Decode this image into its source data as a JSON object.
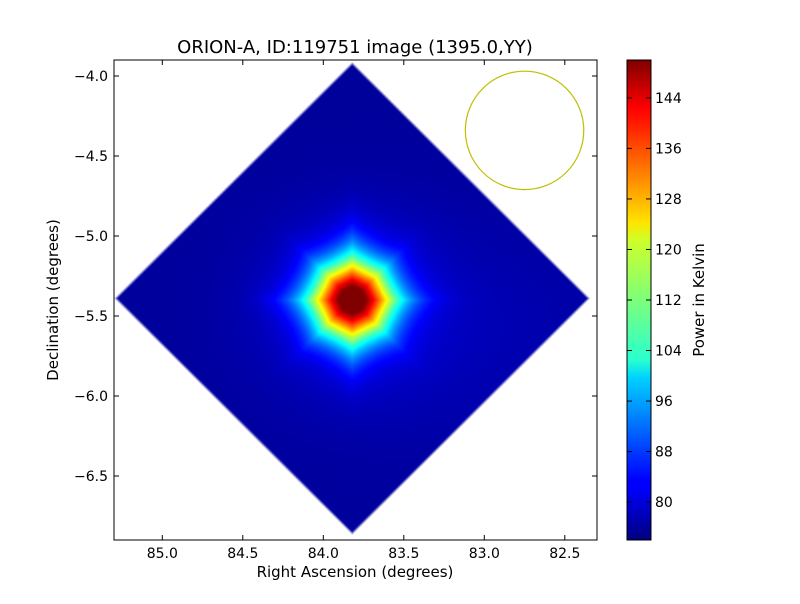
{
  "chart_data": {
    "type": "heatmap",
    "title": "ORION-A, ID:119751 image (1395.0,YY)",
    "xlabel": "Right Ascension (degrees)",
    "ylabel": "Declination (degrees)",
    "colorbar_label": "Power in Kelvin",
    "colormap": "jet",
    "xlim": [
      85.3,
      82.3
    ],
    "ylim": [
      -6.9,
      -3.9
    ],
    "x_ticks": [
      85.0,
      84.5,
      84.0,
      83.5,
      83.0,
      82.5
    ],
    "x_tick_labels": [
      "85.0",
      "84.5",
      "84.0",
      "83.5",
      "83.0",
      "82.5"
    ],
    "y_ticks": [
      -4.0,
      -4.5,
      -5.0,
      -5.5,
      -6.0,
      -6.5
    ],
    "y_tick_labels": [
      "−4.0",
      "−4.5",
      "−5.0",
      "−5.5",
      "−6.0",
      "−6.5"
    ],
    "clim": [
      74,
      150
    ],
    "colorbar_ticks": [
      80,
      88,
      96,
      104,
      112,
      120,
      128,
      136,
      144
    ],
    "colorbar_tick_labels": [
      "80",
      "88",
      "96",
      "104",
      "112",
      "120",
      "128",
      "136",
      "144"
    ],
    "map_center": {
      "ra": 83.82,
      "dec": -5.39
    },
    "map_region": {
      "shape": "diamond",
      "ra_halfwidth": 1.48,
      "dec_halfwidth": 1.48
    },
    "source_peak": {
      "ra": 83.82,
      "dec": -5.4,
      "value": 150
    },
    "background_level": 76,
    "beam": {
      "ra": 82.75,
      "dec": -4.34,
      "radius_deg": 0.37,
      "color": "#bfbf00"
    },
    "grid": false,
    "legend": "none"
  }
}
